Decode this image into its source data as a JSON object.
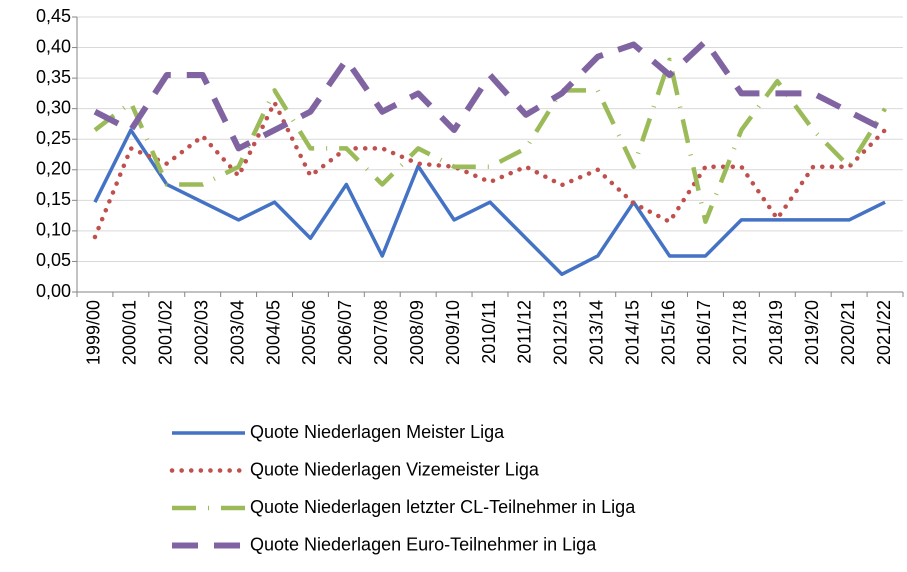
{
  "chart_data": {
    "type": "line",
    "categories": [
      "1999/00",
      "2000/01",
      "2001/02",
      "2002/03",
      "2003/04",
      "2004/05",
      "2005/06",
      "2006/07",
      "2007/08",
      "2008/09",
      "2009/10",
      "2010/11",
      "2011/12",
      "2012/13",
      "2013/14",
      "2014/15",
      "2015/16",
      "2016/17",
      "2017/18",
      "2018/19",
      "2019/20",
      "2020/21",
      "2021/22"
    ],
    "series": [
      {
        "name": "Quote Niederlagen Meister Liga",
        "color": "#4472c4",
        "values": [
          0.147,
          0.265,
          0.176,
          0.147,
          0.118,
          0.147,
          0.088,
          0.176,
          0.059,
          0.206,
          0.118,
          0.147,
          0.088,
          0.029,
          0.059,
          0.147,
          0.059,
          0.059,
          0.118,
          0.118,
          0.118,
          0.118,
          0.147
        ]
      },
      {
        "name": "Quote Niederlagen Vizemeister Liga",
        "color": "#c0504d",
        "values": [
          0.09,
          0.235,
          0.21,
          0.255,
          0.19,
          0.31,
          0.19,
          0.235,
          0.235,
          0.21,
          0.205,
          0.18,
          0.205,
          0.175,
          0.2,
          0.145,
          0.115,
          0.205,
          0.205,
          0.12,
          0.205,
          0.205,
          0.265
        ]
      },
      {
        "name": "Quote Niederlagen letzter CL-Teilnehmer in Liga",
        "color": "#9bbb59",
        "values": [
          0.265,
          0.31,
          0.176,
          0.176,
          0.205,
          0.33,
          0.235,
          0.235,
          0.176,
          0.235,
          0.205,
          0.205,
          0.235,
          0.33,
          0.33,
          0.205,
          0.38,
          0.115,
          0.265,
          0.345,
          0.265,
          0.205,
          0.3
        ]
      },
      {
        "name": "Quote Niederlagen Euro-Teilnehmer in Liga",
        "color": "#8064a2",
        "values": [
          0.295,
          0.265,
          0.355,
          0.355,
          0.235,
          0.265,
          0.295,
          0.38,
          0.295,
          0.325,
          0.265,
          0.355,
          0.29,
          0.325,
          0.385,
          0.405,
          0.355,
          0.41,
          0.325,
          0.325,
          0.325,
          0.295,
          0.265
        ]
      }
    ],
    "ylim": [
      0,
      0.45
    ],
    "yticks": [
      {
        "value": 0,
        "label": "0,00"
      },
      {
        "value": 0.05,
        "label": "0,05"
      },
      {
        "value": 0.1,
        "label": "0,10"
      },
      {
        "value": 0.15,
        "label": "0,15"
      },
      {
        "value": 0.2,
        "label": "0,20"
      },
      {
        "value": 0.25,
        "label": "0,25"
      },
      {
        "value": 0.3,
        "label": "0,30"
      },
      {
        "value": 0.35,
        "label": "0,35"
      },
      {
        "value": 0.4,
        "label": "0,40"
      },
      {
        "value": 0.45,
        "label": "0,45"
      }
    ],
    "grid": true,
    "legend": "bottom"
  }
}
